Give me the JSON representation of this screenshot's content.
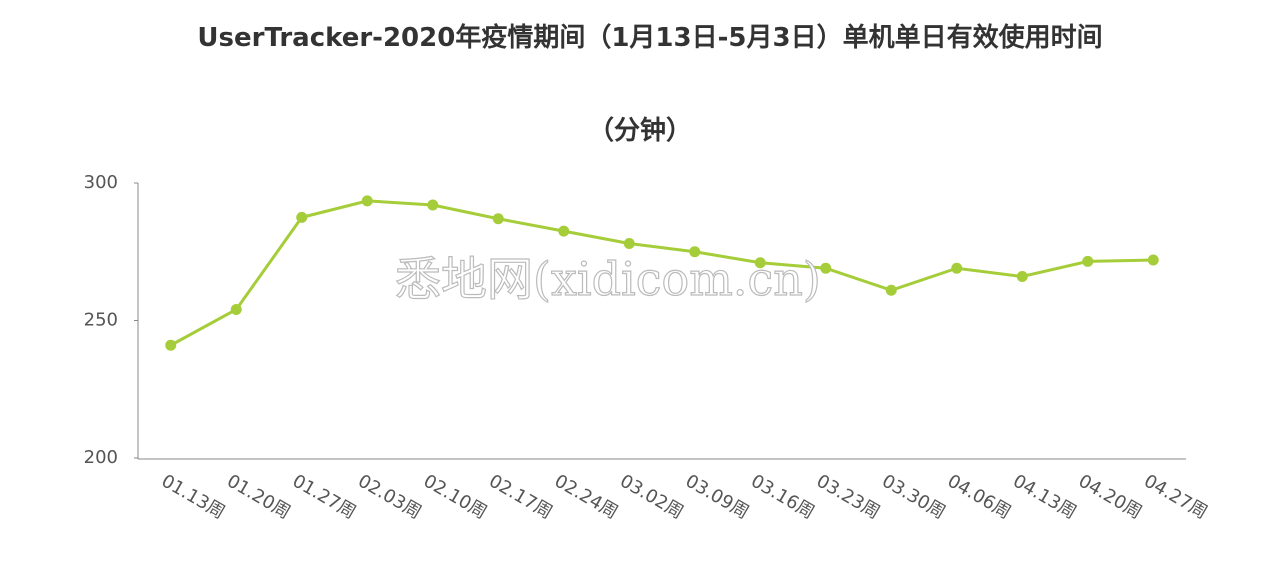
{
  "chart_data": {
    "type": "line",
    "title": "UserTracker-2020年疫情期间（1月13日-5月3日）单机单日有效使用时间",
    "subtitle": "（分钟）",
    "watermark": "悉地网(xidicom.cn)",
    "categories": [
      "01.13周",
      "01.20周",
      "01.27周",
      "02.03周",
      "02.10周",
      "02.17周",
      "02.24周",
      "03.02周",
      "03.09周",
      "03.16周",
      "03.23周",
      "03.30周",
      "04.06周",
      "04.13周",
      "04.20周",
      "04.27周"
    ],
    "series": [
      {
        "name": "单机单日有效使用时间",
        "color": "#a5cd39",
        "values": [
          241,
          254,
          287.5,
          293.5,
          292,
          287,
          282.5,
          278,
          275,
          271,
          269,
          261,
          269,
          266,
          271.5,
          272
        ]
      }
    ],
    "ylim": [
      200,
      300
    ],
    "yticks": [
      200,
      250,
      300
    ],
    "grid": false
  }
}
